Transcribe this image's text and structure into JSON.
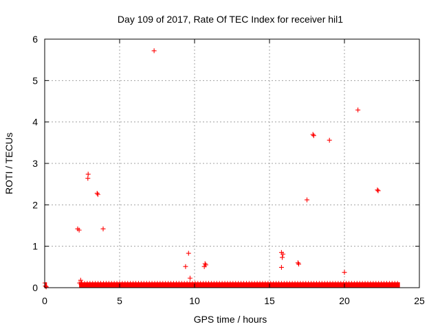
{
  "chart_data": {
    "type": "scatter",
    "title": "Day 109 of 2017, Rate Of TEC Index for receiver hil1",
    "xlabel": "GPS time / hours",
    "ylabel": "ROTI / TECUs",
    "xlim": [
      0,
      25
    ],
    "ylim": [
      0,
      6
    ],
    "xticks": [
      "0",
      "5",
      "10",
      "15",
      "20",
      "25"
    ],
    "yticks": [
      "0",
      "1",
      "2",
      "3",
      "4",
      "5",
      "6"
    ],
    "grid": true,
    "legend": "none",
    "marker": "plus",
    "color": "#ff0000",
    "baseline_band": {
      "x_ranges": [
        [
          0,
          0.15
        ],
        [
          2.3,
          23.7
        ]
      ],
      "y_range": [
        0,
        0.08
      ]
    },
    "points": [
      {
        "x": 7.3,
        "y": 5.72
      },
      {
        "x": 20.9,
        "y": 4.29
      },
      {
        "x": 17.9,
        "y": 3.7
      },
      {
        "x": 17.95,
        "y": 3.67
      },
      {
        "x": 19.0,
        "y": 3.56
      },
      {
        "x": 2.9,
        "y": 2.74
      },
      {
        "x": 2.88,
        "y": 2.64
      },
      {
        "x": 3.5,
        "y": 2.28
      },
      {
        "x": 3.55,
        "y": 2.25
      },
      {
        "x": 22.2,
        "y": 2.36
      },
      {
        "x": 22.25,
        "y": 2.34
      },
      {
        "x": 17.5,
        "y": 2.12
      },
      {
        "x": 2.2,
        "y": 1.42
      },
      {
        "x": 2.3,
        "y": 1.39
      },
      {
        "x": 3.9,
        "y": 1.42
      },
      {
        "x": 9.6,
        "y": 0.83
      },
      {
        "x": 15.8,
        "y": 0.85
      },
      {
        "x": 15.9,
        "y": 0.81
      },
      {
        "x": 15.85,
        "y": 0.73
      },
      {
        "x": 16.9,
        "y": 0.6
      },
      {
        "x": 16.95,
        "y": 0.57
      },
      {
        "x": 10.7,
        "y": 0.58
      },
      {
        "x": 10.75,
        "y": 0.55
      },
      {
        "x": 10.65,
        "y": 0.51
      },
      {
        "x": 9.4,
        "y": 0.51
      },
      {
        "x": 15.8,
        "y": 0.49
      },
      {
        "x": 20.0,
        "y": 0.37
      },
      {
        "x": 9.7,
        "y": 0.23
      },
      {
        "x": 2.4,
        "y": 0.18
      },
      {
        "x": 2.45,
        "y": 0.11
      },
      {
        "x": 0.05,
        "y": 0.04
      },
      {
        "x": 0.1,
        "y": 0.02
      },
      {
        "x": 12.9,
        "y": 0.07
      },
      {
        "x": 17.4,
        "y": 0.07
      },
      {
        "x": 23.4,
        "y": 0.06
      }
    ]
  }
}
